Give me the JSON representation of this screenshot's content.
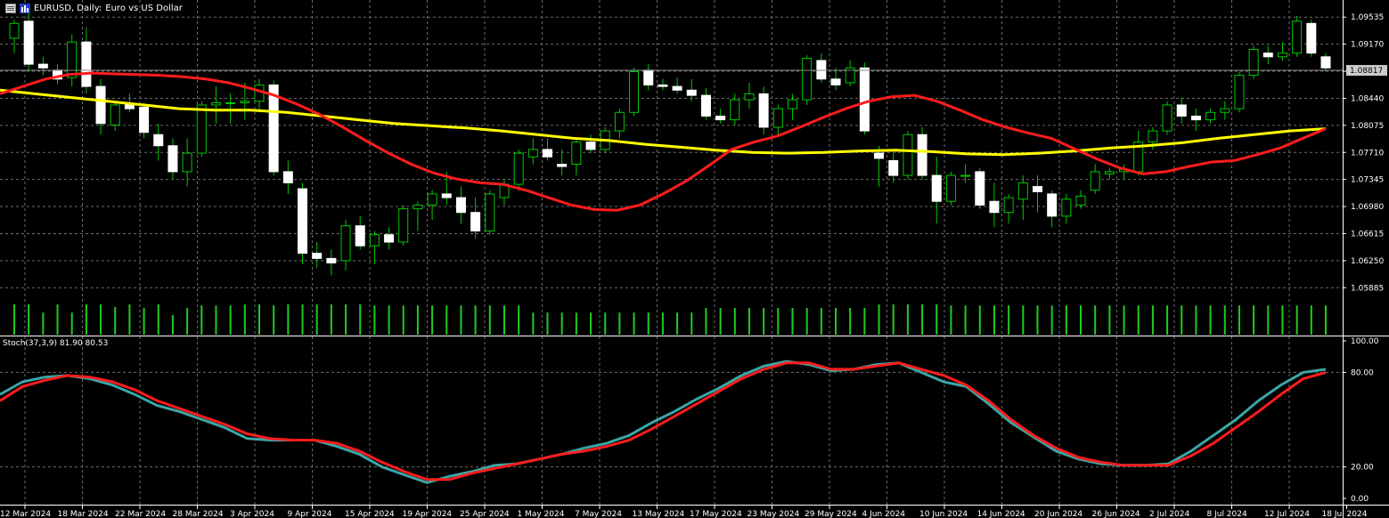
{
  "header": {
    "symbol": "EURUSD, Daily:",
    "description": "Euro vs US Dollar"
  },
  "colors": {
    "background": "#000000",
    "grid": "#6b6b6b",
    "bull_candle": "#00c800",
    "bear_candle": "#ffffff",
    "volume": "#1fcc1f",
    "ma_fast": "#ff1c1c",
    "ma_slow": "#ffff00",
    "stoch_main": "#3aa6a6",
    "stoch_signal": "#ff1c1c",
    "price_marker_bg": "#cccccc"
  },
  "icons": [
    "chart-window-icon",
    "bar-chart-icon"
  ],
  "current_price": "1.08817",
  "chart_data": [
    {
      "type": "candlestick",
      "title": "EURUSD, Daily: Euro vs US Dollar",
      "price_ticks": [
        "1.09535",
        "1.09170",
        "1.08805",
        "1.08440",
        "1.08075",
        "1.07710",
        "1.07345",
        "1.06980",
        "1.06615",
        "1.06250",
        "1.05885"
      ],
      "ylim": [
        1.0566,
        1.0967
      ],
      "date_labels": [
        "12 Mar 2024",
        "18 Mar 2024",
        "22 Mar 2024",
        "28 Mar 2024",
        "3 Apr 2024",
        "9 Apr 2024",
        "15 Apr 2024",
        "19 Apr 2024",
        "25 Apr 2024",
        "1 May 2024",
        "7 May 2024",
        "13 May 2024",
        "17 May 2024",
        "23 May 2024",
        "29 May 2024",
        "4 Jun 2024",
        "10 Jun 2024",
        "14 Jun 2024",
        "20 Jun 2024",
        "26 Jun 2024",
        "2 Jul 2024",
        "8 Jul 2024",
        "12 Jul 2024",
        "18 Jul 2024"
      ],
      "candles": [
        [
          1.0925,
          1.095,
          1.0905,
          1.0945
        ],
        [
          1.0948,
          1.0965,
          1.088,
          1.089
        ],
        [
          1.089,
          1.09,
          1.0875,
          1.0885
        ],
        [
          1.0882,
          1.089,
          1.0863,
          1.087
        ],
        [
          1.0872,
          1.093,
          1.086,
          1.092
        ],
        [
          1.092,
          1.094,
          1.085,
          1.086
        ],
        [
          1.086,
          1.087,
          1.0795,
          1.081
        ],
        [
          1.0808,
          1.084,
          1.08,
          1.0835
        ],
        [
          1.0835,
          1.085,
          1.0825,
          1.083
        ],
        [
          1.0832,
          1.0838,
          1.079,
          1.0798
        ],
        [
          1.0795,
          1.081,
          1.076,
          1.078
        ],
        [
          1.078,
          1.079,
          1.0735,
          1.0745
        ],
        [
          1.0745,
          1.079,
          1.0725,
          1.077
        ],
        [
          1.077,
          1.084,
          1.0765,
          1.0835
        ],
        [
          1.0835,
          1.086,
          1.081,
          1.0838
        ],
        [
          1.0838,
          1.085,
          1.081,
          1.0838
        ],
        [
          1.0838,
          1.0865,
          1.0815,
          1.084
        ],
        [
          1.084,
          1.087,
          1.0825,
          1.0862
        ],
        [
          1.0862,
          1.0868,
          1.074,
          1.0745
        ],
        [
          1.0745,
          1.076,
          1.0715,
          1.073
        ],
        [
          1.0722,
          1.073,
          1.062,
          1.0635
        ],
        [
          1.0635,
          1.065,
          1.0615,
          1.0628
        ],
        [
          1.0628,
          1.064,
          1.0605,
          1.0622
        ],
        [
          1.0625,
          1.068,
          1.0612,
          1.0672
        ],
        [
          1.0672,
          1.0685,
          1.064,
          1.0645
        ],
        [
          1.0645,
          1.0665,
          1.062,
          1.066
        ],
        [
          1.066,
          1.067,
          1.064,
          1.065
        ],
        [
          1.065,
          1.07,
          1.0645,
          1.0695
        ],
        [
          1.0695,
          1.0705,
          1.0665,
          1.07
        ],
        [
          1.07,
          1.072,
          1.068,
          1.0715
        ],
        [
          1.0715,
          1.0745,
          1.07,
          1.071
        ],
        [
          1.071,
          1.0725,
          1.0675,
          1.069
        ],
        [
          1.069,
          1.071,
          1.0655,
          1.0665
        ],
        [
          1.0665,
          1.072,
          1.066,
          1.0715
        ],
        [
          1.071,
          1.0735,
          1.07,
          1.0728
        ],
        [
          1.0728,
          1.0775,
          1.072,
          1.077
        ],
        [
          1.0765,
          1.079,
          1.0755,
          1.0775
        ],
        [
          1.0775,
          1.079,
          1.076,
          1.0765
        ],
        [
          1.0755,
          1.0775,
          1.074,
          1.0752
        ],
        [
          1.0755,
          1.079,
          1.074,
          1.0785
        ],
        [
          1.0785,
          1.0795,
          1.077,
          1.0775
        ],
        [
          1.0775,
          1.0805,
          1.077,
          1.08
        ],
        [
          1.08,
          1.083,
          1.079,
          1.0825
        ],
        [
          1.0825,
          1.0885,
          1.082,
          1.088
        ],
        [
          1.0882,
          1.089,
          1.0855,
          1.0862
        ],
        [
          1.0862,
          1.087,
          1.0855,
          1.086
        ],
        [
          1.086,
          1.0872,
          1.085,
          1.0855
        ],
        [
          1.0855,
          1.087,
          1.084,
          1.0848
        ],
        [
          1.0848,
          1.0858,
          1.0815,
          1.082
        ],
        [
          1.082,
          1.083,
          1.081,
          1.0815
        ],
        [
          1.0815,
          1.085,
          1.0808,
          1.0842
        ],
        [
          1.0842,
          1.0865,
          1.083,
          1.085
        ],
        [
          1.085,
          1.086,
          1.0795,
          1.0805
        ],
        [
          1.0805,
          1.0835,
          1.0795,
          1.083
        ],
        [
          1.083,
          1.085,
          1.0815,
          1.0842
        ],
        [
          1.0842,
          1.0902,
          1.0835,
          1.0898
        ],
        [
          1.0895,
          1.0905,
          1.0865,
          1.087
        ],
        [
          1.087,
          1.0885,
          1.0855,
          1.0862
        ],
        [
          1.0865,
          1.0895,
          1.086,
          1.0885
        ],
        [
          1.0885,
          1.0892,
          1.0795,
          1.08
        ],
        [
          1.077,
          1.078,
          1.0725,
          1.0763
        ],
        [
          1.076,
          1.077,
          1.073,
          1.074
        ],
        [
          1.074,
          1.08,
          1.0735,
          1.0795
        ],
        [
          1.0795,
          1.0805,
          1.0735,
          1.074
        ],
        [
          1.074,
          1.0765,
          1.0675,
          1.0705
        ],
        [
          1.0705,
          1.0745,
          1.07,
          1.074
        ],
        [
          1.074,
          1.0755,
          1.073,
          1.074
        ],
        [
          1.0745,
          1.075,
          1.0695,
          1.07
        ],
        [
          1.0705,
          1.073,
          1.067,
          1.069
        ],
        [
          1.069,
          1.0715,
          1.0675,
          1.071
        ],
        [
          1.0708,
          1.074,
          1.068,
          1.073
        ],
        [
          1.0725,
          1.074,
          1.069,
          1.0718
        ],
        [
          1.0715,
          1.072,
          1.067,
          1.0685
        ],
        [
          1.0685,
          1.0715,
          1.0675,
          1.0708
        ],
        [
          1.07,
          1.072,
          1.0695,
          1.0712
        ],
        [
          1.072,
          1.0755,
          1.0715,
          1.0745
        ],
        [
          1.0742,
          1.075,
          1.0735,
          1.0745
        ],
        [
          1.0745,
          1.0755,
          1.0735,
          1.0748
        ],
        [
          1.0745,
          1.08,
          1.074,
          1.0785
        ],
        [
          1.0785,
          1.0805,
          1.0775,
          1.08
        ],
        [
          1.08,
          1.084,
          1.0795,
          1.0835
        ],
        [
          1.0835,
          1.0845,
          1.081,
          1.082
        ],
        [
          1.082,
          1.083,
          1.08,
          1.0815
        ],
        [
          1.0815,
          1.083,
          1.081,
          1.0825
        ],
        [
          1.0825,
          1.084,
          1.0815,
          1.083
        ],
        [
          1.083,
          1.088,
          1.0825,
          1.0875
        ],
        [
          1.0875,
          1.0915,
          1.087,
          1.091
        ],
        [
          1.0905,
          1.0915,
          1.089,
          1.09
        ],
        [
          1.09,
          1.092,
          1.0895,
          1.0905
        ],
        [
          1.0905,
          1.0955,
          1.09,
          1.0948
        ],
        [
          1.0945,
          1.095,
          1.09,
          1.0905
        ],
        [
          1.09,
          1.0905,
          1.088,
          1.0885
        ]
      ],
      "volumes": [
        0.85,
        0.85,
        0.62,
        0.85,
        0.62,
        0.85,
        0.85,
        0.78,
        0.85,
        0.75,
        0.85,
        0.55,
        0.75,
        0.82,
        0.82,
        0.82,
        0.85,
        0.85,
        0.82,
        0.85,
        0.85,
        0.85,
        0.85,
        0.85,
        0.85,
        0.82,
        0.82,
        0.82,
        0.82,
        0.82,
        0.82,
        0.82,
        0.82,
        0.82,
        0.82,
        0.82,
        0.62,
        0.62,
        0.62,
        0.62,
        0.62,
        0.62,
        0.62,
        0.62,
        0.62,
        0.62,
        0.62,
        0.62,
        0.75,
        0.75,
        0.75,
        0.75,
        0.75,
        0.75,
        0.75,
        0.75,
        0.75,
        0.75,
        0.75,
        0.75,
        0.85,
        0.85,
        0.85,
        0.85,
        0.85,
        0.82,
        0.82,
        0.82,
        0.82,
        0.82,
        0.82,
        0.82,
        0.82,
        0.82,
        0.82,
        0.82,
        0.82,
        0.82,
        0.82,
        0.82,
        0.82,
        0.82,
        0.82,
        0.82,
        0.82,
        0.82,
        0.82,
        0.82,
        0.82,
        0.82,
        0.82,
        0.82
      ],
      "ma_fast_name": "",
      "ma_fast": [
        1.085,
        1.086,
        1.087,
        1.0876,
        1.0878,
        1.0877,
        1.0876,
        1.0875,
        1.0873,
        1.087,
        1.0865,
        1.0857,
        1.0848,
        1.0836,
        1.0822,
        1.0805,
        1.0787,
        1.077,
        1.0755,
        1.0743,
        1.0735,
        1.073,
        1.0728,
        1.072,
        1.071,
        1.07,
        1.0694,
        1.0693,
        1.07,
        1.0715,
        1.0732,
        1.0753,
        1.0775,
        1.0785,
        1.0793,
        1.0805,
        1.0818,
        1.083,
        1.084,
        1.0846,
        1.0848,
        1.084,
        1.0828,
        1.0815,
        1.0805,
        1.0797,
        1.079,
        1.0776,
        1.0762,
        1.075,
        1.0742,
        1.0745,
        1.0752,
        1.0758,
        1.076,
        1.0768,
        1.0777,
        1.079,
        1.0803
      ],
      "ma_slow": [
        1.0855,
        1.085,
        1.0845,
        1.084,
        1.0835,
        1.083,
        1.0828,
        1.0828,
        1.0825,
        1.082,
        1.0815,
        1.081,
        1.0807,
        1.0804,
        1.08,
        1.0795,
        1.079,
        1.0787,
        1.0782,
        1.0778,
        1.0774,
        1.0771,
        1.077,
        1.0771,
        1.0773,
        1.0774,
        1.0772,
        1.0769,
        1.0768,
        1.077,
        1.0773,
        1.0777,
        1.078,
        1.0784,
        1.079,
        1.0795,
        1.08,
        1.0803
      ],
      "ma_slow_name": ""
    },
    {
      "type": "line",
      "title": "Stoch(37,3,9) 81.90 80.53",
      "y_ticks": [
        "100.00",
        "80.00",
        "20.00",
        "0.00"
      ],
      "ylim": [
        0,
        100
      ],
      "levels": [
        80,
        20
      ],
      "series": [
        {
          "values": [
            66,
            74,
            77,
            78,
            76,
            72,
            66,
            59,
            55,
            50,
            45,
            38,
            37,
            37,
            37,
            33,
            28,
            20,
            15,
            10,
            14,
            17,
            21,
            22,
            25,
            28,
            32,
            35,
            40,
            48,
            55,
            63,
            70,
            78,
            84,
            87,
            85,
            81,
            82,
            85,
            86,
            80,
            74,
            71,
            60,
            48,
            39,
            30,
            25,
            22,
            21,
            21,
            22,
            30,
            40,
            50,
            62,
            72,
            80,
            82
          ]
        },
        {
          "values": [
            62,
            71,
            75,
            78,
            77,
            74,
            69,
            62,
            57,
            52,
            47,
            41,
            38,
            37,
            37,
            35,
            30,
            23,
            17,
            12,
            12,
            16,
            19,
            22,
            25,
            28,
            30,
            33,
            37,
            44,
            52,
            60,
            68,
            76,
            82,
            86,
            86,
            82,
            82,
            84,
            86,
            82,
            78,
            72,
            62,
            50,
            40,
            32,
            26,
            23,
            21,
            21,
            21,
            27,
            35,
            45,
            55,
            66,
            76,
            80
          ]
        }
      ]
    }
  ]
}
